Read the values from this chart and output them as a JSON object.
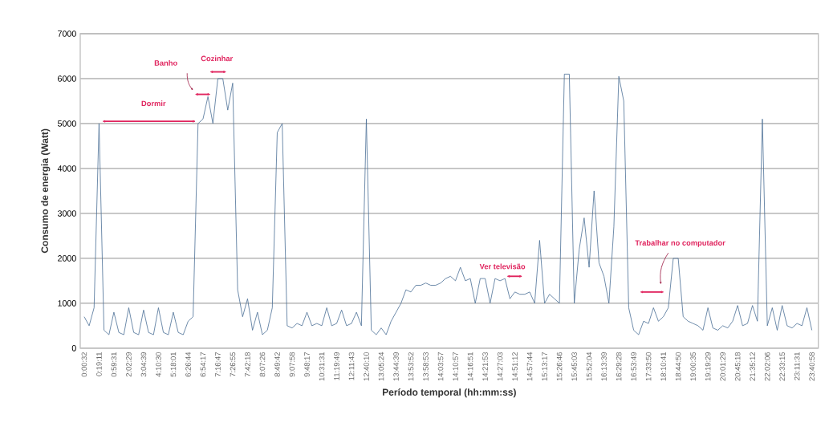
{
  "chart_data": {
    "type": "line",
    "xlabel": "Período temporal (hh:mm:ss)",
    "ylabel": "Consumo de energia (Watt)",
    "categories": [
      "0:00:32",
      null,
      null,
      "0:19:11",
      null,
      null,
      "0:59:31",
      null,
      null,
      "2:02:29",
      null,
      null,
      "3:04:39",
      null,
      null,
      "4:10:30",
      null,
      null,
      "5:18:01",
      null,
      null,
      "6:26:44",
      null,
      null,
      "6:54:17",
      null,
      null,
      "7:16:47",
      null,
      null,
      "7:26:55",
      null,
      null,
      "7:42:18",
      null,
      null,
      "8:07:26",
      null,
      null,
      "8:49:42",
      null,
      null,
      "9:07:58",
      null,
      null,
      "9:48:17",
      null,
      null,
      "10:31:31",
      null,
      null,
      "11:19:49",
      null,
      null,
      "12:11:43",
      null,
      null,
      "12:40:10",
      null,
      null,
      "13:05:24",
      null,
      null,
      "13:44:39",
      null,
      null,
      "13:53:52",
      null,
      null,
      "13:58:53",
      null,
      null,
      "14:03:57",
      null,
      null,
      "14:10:57",
      null,
      null,
      "14:16:51",
      null,
      null,
      "14:21:53",
      null,
      null,
      "14:27:03",
      null,
      null,
      "14:51:12",
      null,
      null,
      "14:57:44",
      null,
      null,
      "15:13:17",
      null,
      null,
      "15:26:46",
      null,
      null,
      "15:45:03",
      null,
      null,
      "15:52:04",
      null,
      null,
      "16:13:39",
      null,
      null,
      "16:29:28",
      null,
      null,
      "16:53:49",
      null,
      null,
      "17:33:50",
      null,
      null,
      "18:10:41",
      null,
      null,
      "18:44:50",
      null,
      null,
      "19:00:35",
      null,
      null,
      "19:19:29",
      null,
      null,
      "20:01:29",
      null,
      null,
      "20:45:18",
      null,
      null,
      "21:35:12",
      null,
      null,
      "22:02:06",
      null,
      null,
      "22:33:15",
      null,
      null,
      "23:11:31",
      null,
      null,
      "23:40:58"
    ],
    "series": [
      {
        "color": "#4a6f96",
        "values": [
          700,
          500,
          900,
          5000,
          400,
          300,
          800,
          350,
          300,
          900,
          350,
          300,
          850,
          350,
          300,
          900,
          350,
          300,
          800,
          350,
          300,
          600,
          700,
          5000,
          5100,
          5600,
          5000,
          6000,
          6000,
          5300,
          5900,
          1300,
          700,
          1100,
          400,
          800,
          300,
          400,
          900,
          4800,
          5000,
          500,
          450,
          550,
          500,
          800,
          500,
          550,
          500,
          900,
          500,
          550,
          850,
          500,
          550,
          800,
          500,
          5100,
          400,
          300,
          450,
          300,
          600,
          800,
          1000,
          1300,
          1250,
          1400,
          1400,
          1450,
          1400,
          1400,
          1450,
          1550,
          1600,
          1500,
          1800,
          1500,
          1550,
          1000,
          1550,
          1550,
          1000,
          1550,
          1500,
          1550,
          1100,
          1250,
          1200,
          1200,
          1250,
          1000,
          2400,
          1000,
          1200,
          1100,
          1000,
          6100,
          6100,
          1000,
          2200,
          2900,
          1800,
          3500,
          1900,
          1600,
          1000,
          2700,
          6050,
          5500,
          900,
          400,
          300,
          600,
          550,
          900,
          600,
          700,
          900,
          2000,
          2000,
          700,
          600,
          550,
          500,
          400,
          900,
          450,
          400,
          500,
          450,
          600,
          950,
          500,
          550,
          950,
          600,
          5100,
          500,
          900,
          400,
          950,
          500,
          450,
          550,
          500,
          900,
          400
        ]
      }
    ],
    "ylim": [
      0,
      7000
    ],
    "yticks": [
      0,
      1000,
      2000,
      3000,
      4000,
      5000,
      6000,
      7000
    ],
    "grid": "y",
    "annotations": [
      "Dormir",
      "Banho",
      "Cozinhar",
      "Ver televisão",
      "Trabalhar no computador"
    ]
  }
}
